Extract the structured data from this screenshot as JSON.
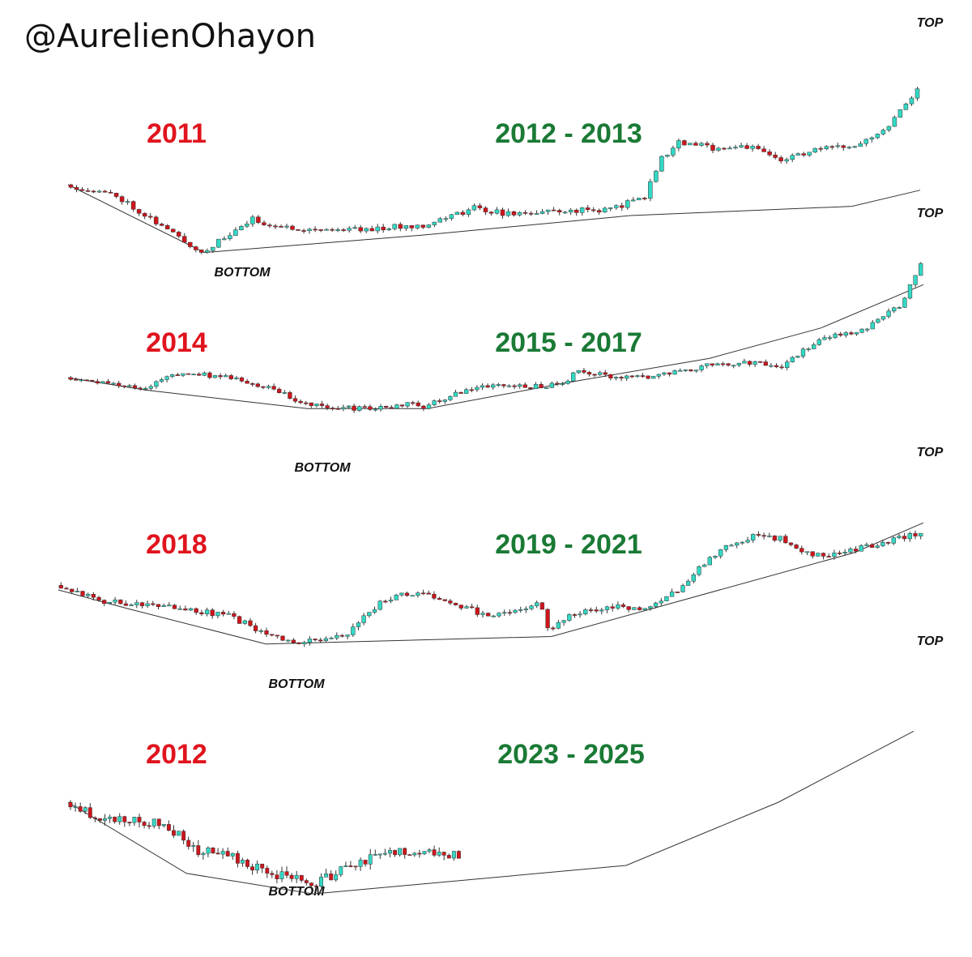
{
  "header": {
    "handle": "@AurelienOhayon"
  },
  "colors": {
    "up": "#32d9c4",
    "down": "#d0141c",
    "wick": "#333333",
    "trend": "#333333",
    "bear_label": "#e0141e",
    "bull_label": "#1a7a35"
  },
  "chart_data": [
    {
      "type": "candlestick",
      "bear_label": "2011",
      "bull_label": "2012 - 2013",
      "bottom_label": "BOTTOM",
      "top_label": "TOP",
      "trend": [
        [
          0,
          1.0
        ],
        [
          0.16,
          0.12
        ],
        [
          0.42,
          0.35
        ],
        [
          0.66,
          0.6
        ],
        [
          0.92,
          0.72
        ],
        [
          1.0,
          0.93
        ]
      ],
      "path": [
        [
          0,
          1.0
        ],
        [
          0.06,
          0.86
        ],
        [
          0.16,
          0.12
        ],
        [
          0.2,
          0.4
        ],
        [
          0.22,
          0.55
        ],
        [
          0.25,
          0.45
        ],
        [
          0.3,
          0.42
        ],
        [
          0.36,
          0.43
        ],
        [
          0.42,
          0.48
        ],
        [
          0.46,
          0.62
        ],
        [
          0.48,
          0.7
        ],
        [
          0.52,
          0.62
        ],
        [
          0.58,
          0.66
        ],
        [
          0.64,
          0.68
        ],
        [
          0.68,
          0.85
        ],
        [
          0.7,
          1.35
        ],
        [
          0.72,
          1.55
        ],
        [
          0.76,
          1.48
        ],
        [
          0.8,
          1.5
        ],
        [
          0.84,
          1.32
        ],
        [
          0.88,
          1.45
        ],
        [
          0.92,
          1.5
        ],
        [
          0.96,
          1.7
        ],
        [
          1.0,
          2.25
        ]
      ],
      "n": 150,
      "vol": 0.035,
      "seed": 11
    },
    {
      "type": "candlestick",
      "bear_label": "2014",
      "bull_label": "2015 - 2017",
      "bottom_label": "BOTTOM",
      "top_label": "TOP",
      "trend": [
        [
          0,
          1.0
        ],
        [
          0.09,
          0.82
        ],
        [
          0.28,
          0.55
        ],
        [
          0.42,
          0.55
        ],
        [
          0.58,
          0.92
        ],
        [
          0.75,
          1.28
        ],
        [
          0.88,
          1.72
        ],
        [
          1.0,
          2.35
        ]
      ],
      "path": [
        [
          0,
          1.0
        ],
        [
          0.04,
          0.95
        ],
        [
          0.09,
          0.82
        ],
        [
          0.12,
          1.05
        ],
        [
          0.16,
          1.05
        ],
        [
          0.2,
          0.98
        ],
        [
          0.24,
          0.85
        ],
        [
          0.28,
          0.62
        ],
        [
          0.34,
          0.55
        ],
        [
          0.38,
          0.58
        ],
        [
          0.4,
          0.62
        ],
        [
          0.42,
          0.58
        ],
        [
          0.46,
          0.78
        ],
        [
          0.5,
          0.88
        ],
        [
          0.54,
          0.86
        ],
        [
          0.58,
          0.9
        ],
        [
          0.6,
          1.1
        ],
        [
          0.64,
          1.0
        ],
        [
          0.68,
          1.0
        ],
        [
          0.72,
          1.1
        ],
        [
          0.76,
          1.2
        ],
        [
          0.8,
          1.22
        ],
        [
          0.84,
          1.15
        ],
        [
          0.86,
          1.38
        ],
        [
          0.9,
          1.65
        ],
        [
          0.92,
          1.6
        ],
        [
          0.95,
          1.82
        ],
        [
          0.98,
          2.1
        ],
        [
          1.0,
          2.68
        ]
      ],
      "n": 160,
      "vol": 0.035,
      "seed": 14
    },
    {
      "type": "candlestick",
      "bear_label": "2018",
      "bull_label": "2019 - 2021",
      "bottom_label": "BOTTOM",
      "top_label": "TOP",
      "trend": [
        [
          0,
          1.0
        ],
        [
          0.08,
          0.8
        ],
        [
          0.24,
          0.42
        ],
        [
          0.57,
          0.5
        ],
        [
          0.92,
          1.4
        ],
        [
          1.0,
          1.72
        ]
      ],
      "path": [
        [
          0,
          1.05
        ],
        [
          0.02,
          1.0
        ],
        [
          0.05,
          0.88
        ],
        [
          0.1,
          0.85
        ],
        [
          0.15,
          0.8
        ],
        [
          0.2,
          0.72
        ],
        [
          0.24,
          0.55
        ],
        [
          0.26,
          0.48
        ],
        [
          0.28,
          0.42
        ],
        [
          0.34,
          0.55
        ],
        [
          0.36,
          0.75
        ],
        [
          0.38,
          0.9
        ],
        [
          0.42,
          0.98
        ],
        [
          0.46,
          0.85
        ],
        [
          0.5,
          0.72
        ],
        [
          0.54,
          0.8
        ],
        [
          0.56,
          0.85
        ],
        [
          0.57,
          0.55
        ],
        [
          0.6,
          0.75
        ],
        [
          0.64,
          0.82
        ],
        [
          0.68,
          0.8
        ],
        [
          0.72,
          1.0
        ],
        [
          0.75,
          1.28
        ],
        [
          0.78,
          1.5
        ],
        [
          0.81,
          1.58
        ],
        [
          0.84,
          1.55
        ],
        [
          0.86,
          1.4
        ],
        [
          0.9,
          1.38
        ],
        [
          0.93,
          1.45
        ],
        [
          0.96,
          1.52
        ],
        [
          1.0,
          1.62
        ]
      ],
      "n": 160,
      "vol": 0.03,
      "seed": 18
    },
    {
      "type": "candlestick",
      "bear_label": "2012",
      "bull_label": "2023 - 2025",
      "bottom_label": "BOTTOM",
      "top_label": "TOP",
      "trend": [
        [
          0,
          1.0
        ],
        [
          0.14,
          0.55
        ],
        [
          0.29,
          0.42
        ],
        [
          0.66,
          0.6
        ],
        [
          0.84,
          1.0
        ],
        [
          1.0,
          1.45
        ]
      ],
      "path": [
        [
          0,
          1.0
        ],
        [
          0.04,
          0.9
        ],
        [
          0.08,
          0.88
        ],
        [
          0.12,
          0.86
        ],
        [
          0.15,
          0.7
        ],
        [
          0.2,
          0.65
        ],
        [
          0.24,
          0.55
        ],
        [
          0.27,
          0.52
        ],
        [
          0.29,
          0.48
        ],
        [
          0.32,
          0.55
        ],
        [
          0.35,
          0.62
        ],
        [
          0.38,
          0.68
        ],
        [
          0.42,
          0.7
        ],
        [
          0.46,
          0.66
        ],
        [
          0.465,
          0.62
        ]
      ],
      "n": 80,
      "vol": 0.03,
      "seed": 23
    }
  ]
}
